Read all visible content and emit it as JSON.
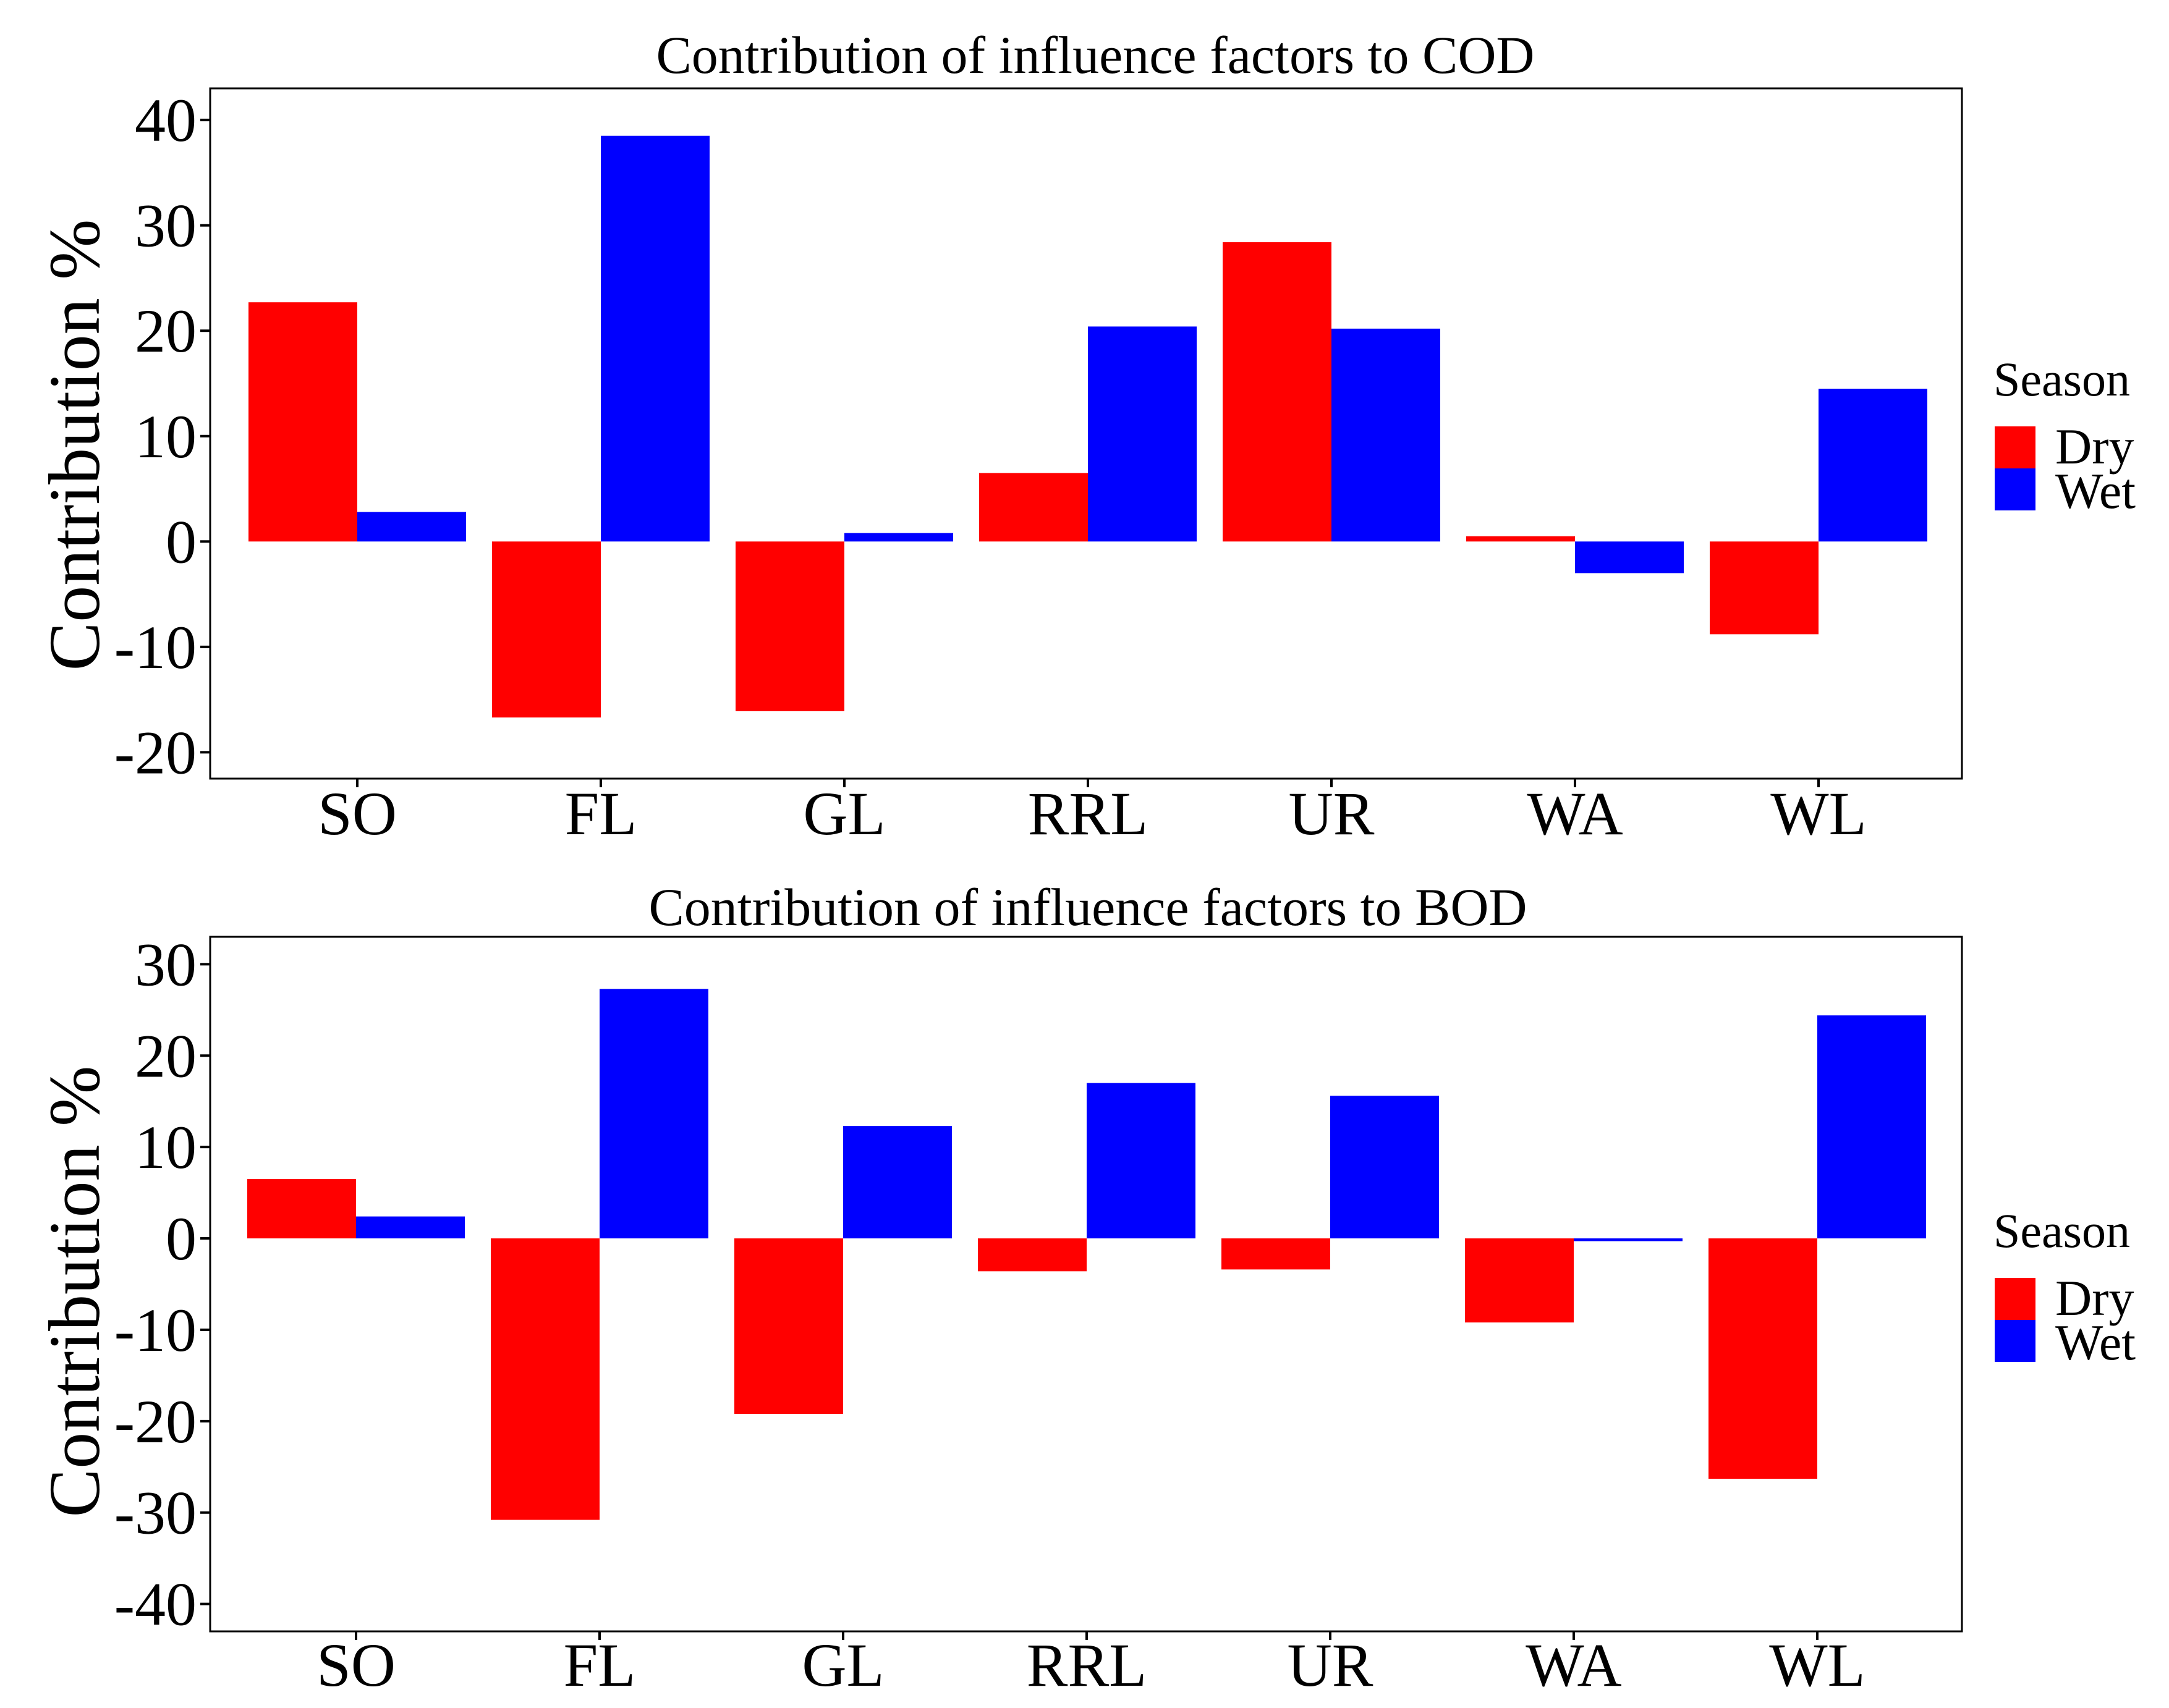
{
  "chart_data": [
    {
      "type": "bar",
      "title": "Contribution of influence factors to COD",
      "xlabel": "",
      "ylabel": "Contribution %",
      "ylim": [
        -22.5,
        43
      ],
      "yticks": [
        -20,
        -10,
        0,
        10,
        20,
        30,
        40
      ],
      "grid": false,
      "categories": [
        "SO",
        "FL",
        "GL",
        "RRL",
        "UR",
        "WA",
        "WL"
      ],
      "series": [
        {
          "name": "Dry",
          "color": "#ff0000",
          "values": [
            22.7,
            -16.7,
            -16.1,
            6.5,
            28.4,
            0.5,
            -8.8
          ]
        },
        {
          "name": "Wet",
          "color": "#0000ff",
          "values": [
            2.8,
            38.5,
            0.8,
            20.4,
            20.2,
            -3.0,
            14.5
          ]
        }
      ],
      "legend": {
        "title": "Season",
        "position": "right",
        "entries": [
          "Dry",
          "Wet"
        ]
      }
    },
    {
      "type": "bar",
      "title": "Contribution of influence factors to BOD",
      "xlabel": "",
      "ylabel": "Contribution %",
      "ylim": [
        -43,
        33
      ],
      "yticks": [
        -40,
        -30,
        -20,
        -10,
        0,
        10,
        20,
        30
      ],
      "grid": false,
      "categories": [
        "SO",
        "FL",
        "GL",
        "RRL",
        "UR",
        "WA",
        "WL"
      ],
      "series": [
        {
          "name": "Dry",
          "color": "#ff0000",
          "values": [
            6.5,
            -30.8,
            -19.2,
            -3.6,
            -3.4,
            -9.2,
            -26.3
          ]
        },
        {
          "name": "Wet",
          "color": "#0000ff",
          "values": [
            2.4,
            27.3,
            12.3,
            17.0,
            15.6,
            -0.3,
            24.4
          ]
        }
      ],
      "legend": {
        "title": "Season",
        "position": "right",
        "entries": [
          "Dry",
          "Wet"
        ]
      }
    }
  ]
}
